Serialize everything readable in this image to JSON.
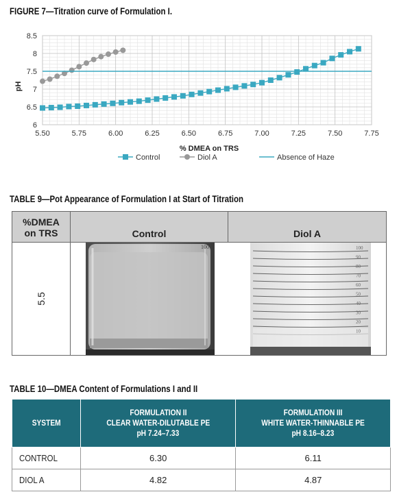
{
  "figure": {
    "title": "FIGURE 7—Titration curve of Formulation I."
  },
  "chart_data": {
    "type": "line",
    "title": "",
    "xlabel": "% DMEA on TRS",
    "ylabel": "pH",
    "xlim": [
      5.5,
      7.75
    ],
    "ylim": [
      6,
      8.5
    ],
    "x_ticks": [
      "5.50",
      "5.75",
      "6.00",
      "6.25",
      "6.50",
      "6.75",
      "7.00",
      "7.25",
      "7.50",
      "7.75"
    ],
    "y_ticks": [
      "6",
      "6.5",
      "7",
      "7.5",
      "8",
      "8.5"
    ],
    "grid": true,
    "legend_position": "bottom",
    "series": [
      {
        "name": "Control",
        "color": "#3aa8c1",
        "marker": "square",
        "x": [
          5.5,
          5.56,
          5.62,
          5.68,
          5.74,
          5.8,
          5.86,
          5.92,
          5.98,
          6.04,
          6.1,
          6.16,
          6.22,
          6.28,
          6.34,
          6.4,
          6.46,
          6.52,
          6.58,
          6.64,
          6.7,
          6.76,
          6.82,
          6.88,
          6.94,
          7.0,
          7.06,
          7.12,
          7.18,
          7.24,
          7.3,
          7.36,
          7.42,
          7.48,
          7.54,
          7.6,
          7.66
        ],
        "y": [
          6.47,
          6.48,
          6.49,
          6.51,
          6.52,
          6.54,
          6.56,
          6.58,
          6.6,
          6.62,
          6.64,
          6.66,
          6.69,
          6.72,
          6.75,
          6.78,
          6.81,
          6.85,
          6.89,
          6.93,
          6.97,
          7.01,
          7.05,
          7.09,
          7.13,
          7.18,
          7.25,
          7.32,
          7.4,
          7.48,
          7.57,
          7.66,
          7.74,
          7.86,
          7.96,
          8.05,
          8.13
        ]
      },
      {
        "name": "Diol A",
        "color": "#999999",
        "marker": "circle",
        "x": [
          5.5,
          5.55,
          5.6,
          5.65,
          5.7,
          5.75,
          5.8,
          5.85,
          5.9,
          5.95,
          6.0,
          6.05
        ],
        "y": [
          7.22,
          7.28,
          7.36,
          7.44,
          7.53,
          7.63,
          7.73,
          7.83,
          7.91,
          7.98,
          8.04,
          8.09
        ]
      },
      {
        "name": "Absence of Haze",
        "color": "#3aa8c1",
        "marker": "none",
        "x": [
          5.5,
          7.75
        ],
        "y": [
          7.5,
          7.5
        ]
      }
    ]
  },
  "table9": {
    "title": "TABLE 9—Pot Appearance of Formulation I at Start of Titration",
    "header_col1_line1": "%DMEA",
    "header_col1_line2": "on TRS",
    "header_control": "Control",
    "header_diol": "Diol A",
    "row_value": "5.5",
    "beaker_marks_control": "100",
    "beaker_marks_diol": [
      "100",
      "90",
      "80",
      "70",
      "60",
      "50",
      "40",
      "30",
      "20",
      "10"
    ]
  },
  "table10": {
    "title": "TABLE 10—DMEA Content of Formulations I and II",
    "headers": {
      "system": "SYSTEM",
      "col2_line1": "FORMULATION II",
      "col2_line2": "CLEAR WATER-DILUTABLE PE",
      "col2_line3": "pH 7.24–7.33",
      "col3_line1": "FORMULATION III",
      "col3_line2": "WHITE WATER-THINNABLE PE",
      "col3_line3": "pH 8.16–8.23"
    },
    "rows": [
      {
        "system": "CONTROL",
        "f2": "6.30",
        "f3": "6.11"
      },
      {
        "system": "DIOL A",
        "f2": "4.82",
        "f3": "4.87"
      }
    ]
  }
}
